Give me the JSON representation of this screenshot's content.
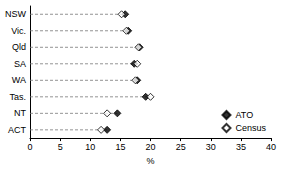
{
  "chart_data": {
    "type": "dot",
    "orientation": "horizontal",
    "categories": [
      "NSW",
      "Vic.",
      "Qld",
      "SA",
      "WA",
      "Tas.",
      "NT",
      "ACT"
    ],
    "series": [
      {
        "name": "ATO",
        "color": "#000000",
        "marker": "diamond",
        "values": [
          15.8,
          16.3,
          18.2,
          17.3,
          17.8,
          19.2,
          14.5,
          12.8
        ]
      },
      {
        "name": "Census",
        "color": "#000000",
        "marker": "open-diamond",
        "values": [
          15.2,
          16.0,
          18.0,
          17.8,
          17.5,
          20.0,
          12.8,
          11.8
        ]
      }
    ],
    "xlabel": "%",
    "xlim": [
      0,
      40
    ],
    "xticks": [
      0,
      5,
      10,
      15,
      20,
      25,
      30,
      35,
      40
    ],
    "legend": "lower-right",
    "grid": false
  }
}
